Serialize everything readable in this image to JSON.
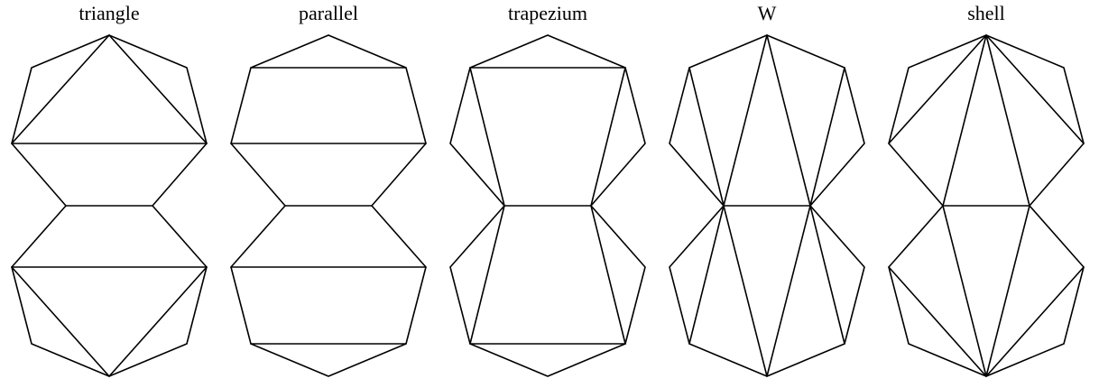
{
  "figure": {
    "stroke_color": "#000000",
    "background_color": "#ffffff",
    "panels": [
      {
        "title": "triangle"
      },
      {
        "title": "parallel"
      },
      {
        "title": "trapezium"
      },
      {
        "title": "W"
      },
      {
        "title": "shell"
      }
    ]
  }
}
